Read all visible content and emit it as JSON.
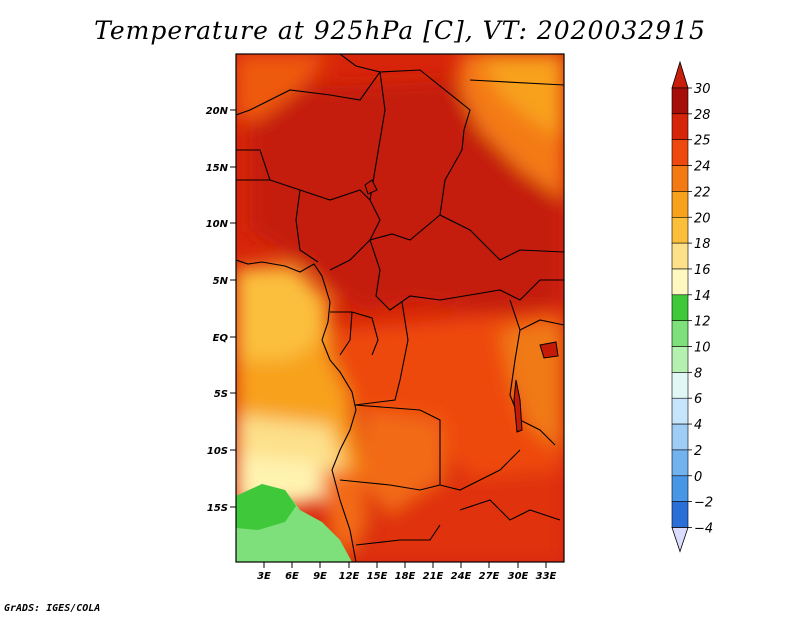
{
  "title": "Temperature at 925hPa [C], VT: 2020032915",
  "credit": "GrADS: IGES/COLA",
  "map": {
    "lat_labels": [
      "20N",
      "15N",
      "10N",
      "5N",
      "EQ",
      "5S",
      "10S",
      "15S"
    ],
    "lon_labels": [
      "3E",
      "6E",
      "9E",
      "12E",
      "15E",
      "18E",
      "21E",
      "24E",
      "27E",
      "30E",
      "33E"
    ]
  },
  "colorbar": {
    "levels": [
      "30",
      "28",
      "25",
      "24",
      "22",
      "20",
      "18",
      "16",
      "14",
      "12",
      "10",
      "8",
      "6",
      "4",
      "2",
      "0",
      "−2",
      "−4"
    ],
    "colors": [
      "#a50f0a",
      "#d7250a",
      "#ee4a10",
      "#f47a14",
      "#f8a11c",
      "#fbbf3c",
      "#fde08a",
      "#fff8c0",
      "#3ec83a",
      "#7ee07a",
      "#b4f0b0",
      "#dff7f5",
      "#c6e4fa",
      "#9fcdf6",
      "#72b2ef",
      "#4896e6",
      "#2a6fd8",
      "#1245b8",
      "#08146e"
    ],
    "top_color": "#c81e0c",
    "bottom_color": "#dcdcff"
  }
}
